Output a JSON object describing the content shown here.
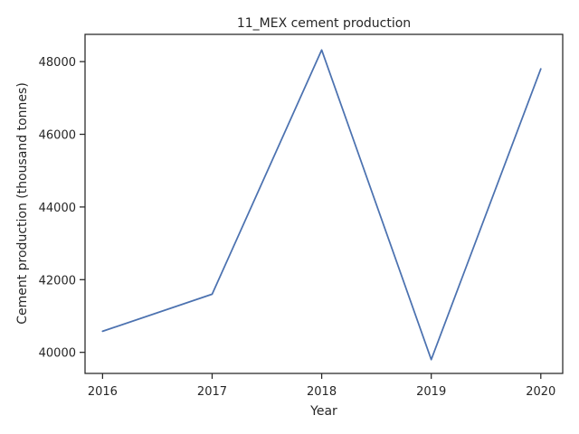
{
  "chart_data": {
    "type": "line",
    "title": "11_MEX cement production",
    "xlabel": "Year",
    "ylabel": "Cement production (thousand tonnes)",
    "x": [
      2016,
      2017,
      2018,
      2019,
      2020
    ],
    "series": [
      {
        "values": [
          40580,
          41600,
          48320,
          39800,
          47800
        ]
      }
    ],
    "xticks": [
      "2016",
      "2017",
      "2018",
      "2019",
      "2020"
    ],
    "yticks": [
      "40000",
      "42000",
      "44000",
      "46000",
      "48000"
    ],
    "xlim": [
      2015.84,
      2020.2
    ],
    "ylim": [
      39420,
      48750
    ],
    "grid": false,
    "line_color": "#4c72b0"
  }
}
